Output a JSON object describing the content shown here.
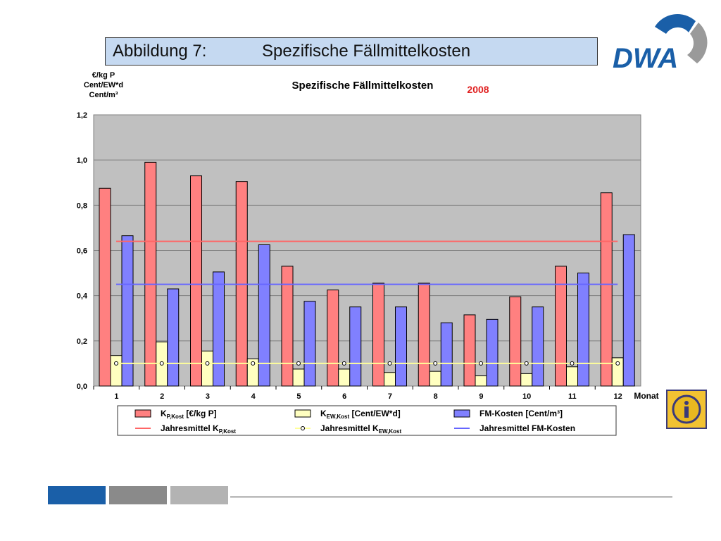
{
  "slide": {
    "heading_label": "Abbildung 7:",
    "heading_title": "Spezifische Fällmittelkosten"
  },
  "logo": {
    "text": "DWA"
  },
  "colors": {
    "k_p": "#ff8080",
    "k_ew": "#ffffc0",
    "fm": "#8080ff",
    "mean_p": "#ff6666",
    "mean_ew": "#ffff99",
    "mean_fm": "#6666ff",
    "plot_bg": "#c0c0c0",
    "accent_blue": "#1a5fa8"
  },
  "chart_data": {
    "type": "bar",
    "title": "Spezifische Fällmittelkosten",
    "year": "2008",
    "ylabel_lines": [
      "€/kg P",
      "Cent/EW*d",
      "Cent/m³"
    ],
    "xlabel": "Monat",
    "categories": [
      "1",
      "2",
      "3",
      "4",
      "5",
      "6",
      "7",
      "8",
      "9",
      "10",
      "11",
      "12"
    ],
    "ylim": [
      0,
      1.2
    ],
    "yticks": [
      "0,0",
      "0,2",
      "0,4",
      "0,6",
      "0,8",
      "1,0",
      "1,2"
    ],
    "grid": true,
    "legend_position": "bottom",
    "series": [
      {
        "name": "K_P,Kost [€/kg P]",
        "legend_main": "K",
        "legend_sub": "P,Kost",
        "legend_rest": " [€/kg P]",
        "values": [
          0.875,
          0.99,
          0.93,
          0.905,
          0.53,
          0.425,
          0.455,
          0.455,
          0.315,
          0.395,
          0.53,
          0.855
        ]
      },
      {
        "name": "K_EW,Kost [Cent/EW*d]",
        "legend_main": "K",
        "legend_sub": "EW,Kost",
        "legend_rest": "  [Cent/EW*d]",
        "values": [
          0.135,
          0.195,
          0.155,
          0.12,
          0.075,
          0.075,
          0.06,
          0.065,
          0.045,
          0.055,
          0.085,
          0.125
        ]
      },
      {
        "name": "FM-Kosten [Cent/m³]",
        "legend_main": "FM-Kosten [Cent/m³]",
        "legend_sub": "",
        "legend_rest": "",
        "values": [
          0.665,
          0.43,
          0.505,
          0.625,
          0.375,
          0.35,
          0.35,
          0.28,
          0.295,
          0.35,
          0.5,
          0.67
        ]
      }
    ],
    "means": [
      {
        "name": "Jahresmittel K_P,Kost",
        "legend_main": "Jahresmittel K",
        "legend_sub": "P,Kost",
        "value": 0.64
      },
      {
        "name": "Jahresmittel K_EW,Kost",
        "legend_main": "Jahresmittel K",
        "legend_sub": "EW,Kost",
        "value": 0.1
      },
      {
        "name": "Jahresmittel FM-Kosten",
        "legend_main": "Jahresmittel FM-Kosten",
        "legend_sub": "",
        "value": 0.45
      }
    ]
  }
}
